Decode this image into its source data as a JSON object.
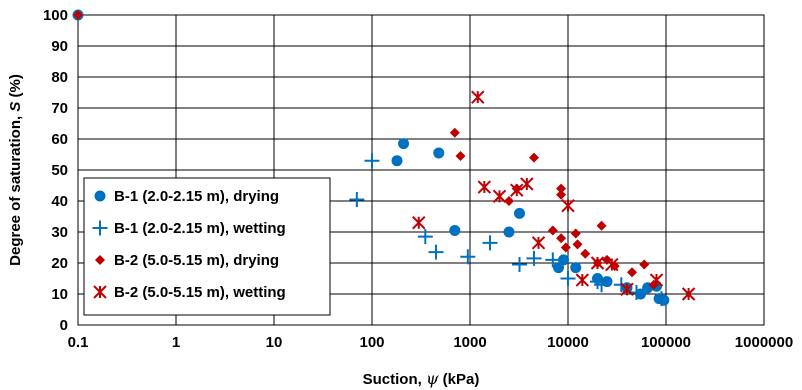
{
  "chart_data": {
    "type": "scatter",
    "xscale": "log",
    "xlim": [
      0.1,
      1000000
    ],
    "ylim": [
      0,
      100
    ],
    "xticks": [
      "0.1",
      "1",
      "10",
      "100",
      "1000",
      "10000",
      "100000",
      "1000000"
    ],
    "xtick_values": [
      0.1,
      1,
      10,
      100,
      1000,
      10000,
      100000,
      1000000
    ],
    "yticks": [
      "0",
      "10",
      "20",
      "30",
      "40",
      "50",
      "60",
      "70",
      "80",
      "90",
      "100"
    ],
    "ytick_values": [
      0,
      10,
      20,
      30,
      40,
      50,
      60,
      70,
      80,
      90,
      100
    ],
    "xlabel_parts": [
      "Suction, ",
      "ψ",
      " (kPa)"
    ],
    "ylabel_parts": [
      "Degree of saturation, ",
      "S",
      " (%)"
    ],
    "grid": true,
    "legend_position": "left-middle",
    "series": [
      {
        "name": "B-1 (2.0-2.15 m), drying",
        "marker": "circle",
        "color": "#0070C0",
        "points": [
          [
            0.1,
            100
          ],
          [
            180,
            53
          ],
          [
            210,
            58.5
          ],
          [
            480,
            55.5
          ],
          [
            700,
            30.5
          ],
          [
            2500,
            30
          ],
          [
            3200,
            36
          ],
          [
            8000,
            18.5
          ],
          [
            9000,
            21
          ],
          [
            12000,
            18.5
          ],
          [
            20000,
            15
          ],
          [
            25000,
            14
          ],
          [
            40000,
            12
          ],
          [
            55000,
            10
          ],
          [
            65000,
            12
          ],
          [
            80000,
            12.5
          ],
          [
            85000,
            8.5
          ],
          [
            95000,
            8
          ]
        ]
      },
      {
        "name": "B-1 (2.0-2.15 m), wetting",
        "marker": "plus",
        "color": "#0070C0",
        "points": [
          [
            100,
            53
          ],
          [
            70,
            40.5
          ],
          [
            350,
            28.5
          ],
          [
            450,
            23.5
          ],
          [
            950,
            22
          ],
          [
            1600,
            26.5
          ],
          [
            3200,
            19.5
          ],
          [
            4500,
            21.5
          ],
          [
            7000,
            21
          ],
          [
            10000,
            15
          ],
          [
            20000,
            14
          ],
          [
            22000,
            13
          ],
          [
            35000,
            13
          ],
          [
            50000,
            10.5
          ],
          [
            90000,
            8.5
          ]
        ]
      },
      {
        "name": "B-2 (5.0-5.15 m), drying",
        "marker": "diamond",
        "color": "#C00000",
        "points": [
          [
            0.1,
            100
          ],
          [
            700,
            62
          ],
          [
            800,
            54.5
          ],
          [
            2500,
            40
          ],
          [
            3000,
            44
          ],
          [
            4500,
            54
          ],
          [
            7000,
            30.5
          ],
          [
            8500,
            44
          ],
          [
            8500,
            42
          ],
          [
            8500,
            28
          ],
          [
            9500,
            25
          ],
          [
            12000,
            29.5
          ],
          [
            12500,
            26
          ],
          [
            15000,
            23
          ],
          [
            20000,
            20
          ],
          [
            22000,
            32
          ],
          [
            25000,
            21
          ],
          [
            30000,
            19
          ],
          [
            45000,
            17
          ],
          [
            60000,
            19.5
          ],
          [
            75000,
            13
          ]
        ]
      },
      {
        "name": "B-2 (5.0-5.15 m), wetting",
        "marker": "x-asterisk",
        "color": "#C00000",
        "points": [
          [
            300,
            33
          ],
          [
            1200,
            73.5
          ],
          [
            1400,
            44.5
          ],
          [
            2000,
            41.5
          ],
          [
            3000,
            43.5
          ],
          [
            3800,
            45.5
          ],
          [
            5000,
            26.5
          ],
          [
            10000,
            38.5
          ],
          [
            14000,
            14.5
          ],
          [
            20000,
            20
          ],
          [
            28000,
            19.5
          ],
          [
            40000,
            11.5
          ],
          [
            80000,
            14.5
          ],
          [
            170000,
            10
          ]
        ]
      }
    ]
  }
}
